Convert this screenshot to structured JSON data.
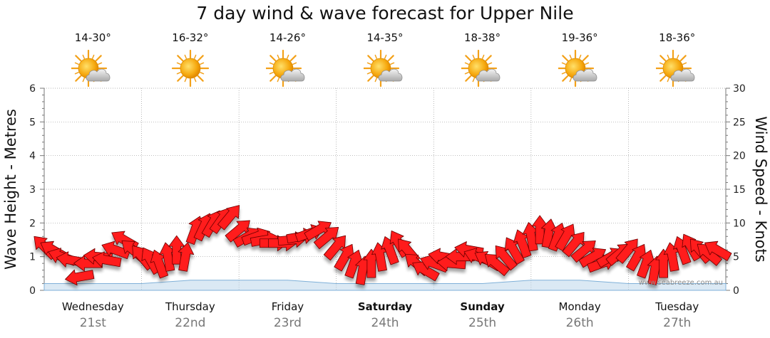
{
  "chart_data": {
    "type": "line",
    "title": "7 day wind & wave forecast for Upper Nile",
    "ylabel_left": "Wave Height - Metres",
    "ylabel_right": "Wind Speed - Knots",
    "ylim_left": [
      0,
      6
    ],
    "ylim_right": [
      0,
      30
    ],
    "yticks_left": [
      "0",
      "1",
      "2",
      "3",
      "4",
      "5",
      "6"
    ],
    "yticks_right": [
      "0",
      "5",
      "10",
      "15",
      "20",
      "25",
      "30"
    ],
    "grid": true,
    "watermark": "www.seabreeze.com.au",
    "days": [
      {
        "day": "Wednesday",
        "date": "21st",
        "bold": false,
        "temp": "14-30°",
        "weather": "partly-cloudy"
      },
      {
        "day": "Thursday",
        "date": "22nd",
        "bold": false,
        "temp": "16-32°",
        "weather": "sunny"
      },
      {
        "day": "Friday",
        "date": "23rd",
        "bold": false,
        "temp": "14-26°",
        "weather": "partly-cloudy"
      },
      {
        "day": "Saturday",
        "date": "24th",
        "bold": true,
        "temp": "14-35°",
        "weather": "partly-cloudy"
      },
      {
        "day": "Sunday",
        "date": "25th",
        "bold": true,
        "temp": "18-38°",
        "weather": "partly-cloudy"
      },
      {
        "day": "Monday",
        "date": "26th",
        "bold": false,
        "temp": "19-36°",
        "weather": "partly-cloudy"
      },
      {
        "day": "Tuesday",
        "date": "27th",
        "bold": false,
        "temp": "18-36°",
        "weather": "partly-cloudy"
      }
    ],
    "series": [
      {
        "name": "Wind",
        "unit": "knots",
        "x_days": [
          0.0,
          0.09,
          0.18,
          0.27,
          0.36,
          0.45,
          0.55,
          0.64,
          0.73,
          0.82,
          0.91,
          1.0,
          1.09,
          1.18,
          1.27,
          1.36,
          1.45,
          1.55,
          1.64,
          1.73,
          1.82,
          1.91,
          2.0,
          2.09,
          2.18,
          2.27,
          2.36,
          2.45,
          2.55,
          2.64,
          2.73,
          2.82,
          2.91,
          3.0,
          3.09,
          3.18,
          3.27,
          3.36,
          3.45,
          3.55,
          3.64,
          3.73,
          3.82,
          3.91,
          4.0,
          4.09,
          4.18,
          4.27,
          4.36,
          4.45,
          4.55,
          4.64,
          4.73,
          4.82,
          4.91,
          5.0,
          5.09,
          5.18,
          5.27,
          5.36,
          5.45,
          5.55,
          5.64,
          5.73,
          5.82,
          5.91,
          6.0,
          6.09,
          6.18,
          6.27,
          6.36,
          6.45,
          6.55,
          6.64,
          6.73,
          6.82,
          6.91
        ],
        "values": [
          6.5,
          6,
          5,
          4.5,
          2,
          4,
          5,
          4.5,
          6,
          7.5,
          6,
          5,
          4.5,
          4,
          5,
          6,
          5,
          9,
          9.5,
          10,
          10.5,
          11,
          9,
          8,
          8,
          7.5,
          7,
          7,
          7.5,
          8,
          8.5,
          9,
          8,
          6.5,
          5,
          4,
          3,
          4,
          5,
          6,
          7,
          6,
          4,
          3,
          4,
          5,
          4,
          5,
          6,
          5,
          4.5,
          4,
          5,
          6,
          7,
          8,
          9,
          8.5,
          8,
          8,
          7,
          6,
          5,
          4,
          5,
          5.5,
          6,
          5,
          4,
          3,
          4,
          5,
          6,
          6.5,
          6,
          5.5,
          6
        ],
        "direction_deg": [
          135,
          120,
          110,
          100,
          80,
          90,
          95,
          100,
          110,
          120,
          130,
          140,
          150,
          160,
          170,
          180,
          190,
          200,
          205,
          210,
          215,
          220,
          230,
          240,
          250,
          260,
          270,
          270,
          265,
          260,
          250,
          240,
          230,
          220,
          210,
          200,
          190,
          180,
          170,
          160,
          150,
          140,
          130,
          120,
          110,
          100,
          95,
          90,
          100,
          110,
          120,
          130,
          140,
          150,
          160,
          170,
          180,
          190,
          200,
          210,
          220,
          230,
          240,
          250,
          240,
          230,
          220,
          210,
          200,
          190,
          180,
          170,
          160,
          150,
          140,
          130,
          120
        ]
      },
      {
        "name": "Wave",
        "unit": "metres",
        "x_days": [
          0,
          0.5,
          1,
          1.5,
          2,
          2.5,
          3,
          3.5,
          4,
          4.5,
          5,
          5.5,
          6,
          6.5,
          7
        ],
        "values": [
          0.2,
          0.2,
          0.2,
          0.3,
          0.3,
          0.3,
          0.2,
          0.2,
          0.2,
          0.2,
          0.3,
          0.3,
          0.2,
          0.2,
          0.2
        ]
      }
    ]
  }
}
